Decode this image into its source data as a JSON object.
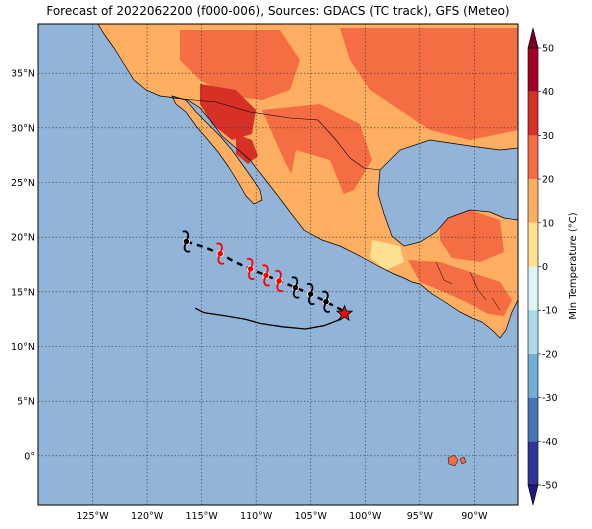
{
  "title": "Forecast of 2022062200 (f000-006), Sources: GDACS (TC track), GFS (Meteo)",
  "map": {
    "lon_range": [
      -130,
      -86
    ],
    "lat_range": [
      -4.5,
      39.5
    ],
    "lon_ticks": [
      {
        "value": -125,
        "label": "125°W"
      },
      {
        "value": -120,
        "label": "120°W"
      },
      {
        "value": -115,
        "label": "115°W"
      },
      {
        "value": -110,
        "label": "110°W"
      },
      {
        "value": -105,
        "label": "105°W"
      },
      {
        "value": -100,
        "label": "100°W"
      },
      {
        "value": -95,
        "label": "95°W"
      },
      {
        "value": -90,
        "label": "90°W"
      }
    ],
    "lat_ticks": [
      {
        "value": 35,
        "label": "35°N"
      },
      {
        "value": 30,
        "label": "30°N"
      },
      {
        "value": 25,
        "label": "25°N"
      },
      {
        "value": 20,
        "label": "20°N"
      },
      {
        "value": 15,
        "label": "15°N"
      },
      {
        "value": 10,
        "label": "10°N"
      },
      {
        "value": 5,
        "label": "5°N"
      },
      {
        "value": 0,
        "label": "0°"
      }
    ],
    "ocean_color": "#92b4d8",
    "gridlines": "dotted"
  },
  "track": {
    "past_path": [
      [
        -101.8,
        13.0
      ],
      [
        -102.5,
        12.4
      ],
      [
        -103.8,
        11.9
      ],
      [
        -105.5,
        11.6
      ],
      [
        -107.6,
        11.8
      ],
      [
        -109.6,
        12.1
      ],
      [
        -111.0,
        12.5
      ],
      [
        -112.8,
        12.8
      ],
      [
        -114.8,
        13.1
      ],
      [
        -115.6,
        13.5
      ]
    ],
    "forecast_track": [
      [
        -116.4,
        19.6
      ],
      [
        -114.8,
        19.1
      ],
      [
        -113.3,
        18.5
      ],
      [
        -111.9,
        17.7
      ],
      [
        -110.5,
        17.1
      ],
      [
        -109.1,
        16.5
      ],
      [
        -107.9,
        16.0
      ],
      [
        -106.4,
        15.4
      ],
      [
        -105.0,
        14.8
      ],
      [
        -103.6,
        14.1
      ],
      [
        -101.9,
        13.2
      ]
    ],
    "symbols": [
      {
        "lon": -116.4,
        "lat": 19.6,
        "color": "#000000"
      },
      {
        "lon": -113.3,
        "lat": 18.5,
        "color": "#ff0000"
      },
      {
        "lon": -110.5,
        "lat": 17.1,
        "color": "#ff0000"
      },
      {
        "lon": -109.1,
        "lat": 16.5,
        "color": "#ff0000"
      },
      {
        "lon": -107.9,
        "lat": 16.0,
        "color": "#ff0000"
      },
      {
        "lon": -106.4,
        "lat": 15.4,
        "color": "#000000"
      },
      {
        "lon": -105.0,
        "lat": 14.8,
        "color": "#000000"
      },
      {
        "lon": -103.6,
        "lat": 14.1,
        "color": "#000000"
      }
    ],
    "current_position": {
      "lon": -101.9,
      "lat": 13.0,
      "color": "#e01010"
    }
  },
  "colorbar": {
    "label": "Min Temperature (°C)",
    "min": -50,
    "max": 50,
    "step": 10,
    "ticks": [
      "-50",
      "-40",
      "-30",
      "-20",
      "-10",
      "0",
      "10",
      "20",
      "30",
      "40",
      "50"
    ],
    "colors": [
      "#313695",
      "#4575b4",
      "#74add1",
      "#abd9e9",
      "#e0f3f8",
      "#fee090",
      "#fdae61",
      "#f46d43",
      "#d73027",
      "#a50026"
    ],
    "under_color": "#1a1a80",
    "over_color": "#7a0020"
  }
}
